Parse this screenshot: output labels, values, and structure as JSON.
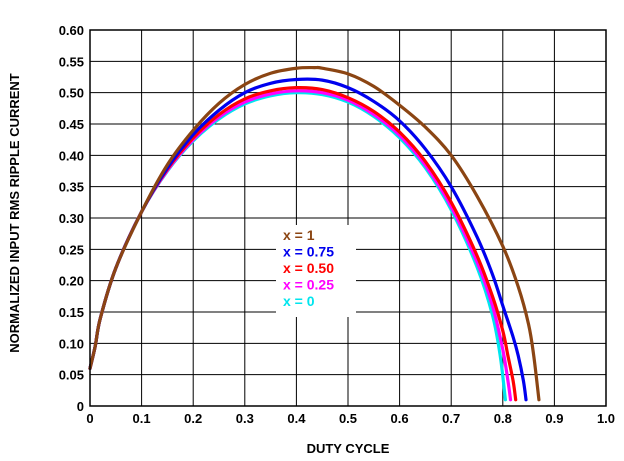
{
  "chart_data": {
    "type": "line",
    "title": "",
    "xlabel": "DUTY CYCLE",
    "ylabel": "NORMALIZED INPUT RMS RIPPLE CURRENT",
    "xlim": [
      0,
      1.0
    ],
    "ylim": [
      0,
      0.6
    ],
    "grid": true,
    "legend_position": "center",
    "x_ticks": [
      "0",
      "0.1",
      "0.2",
      "0.3",
      "0.4",
      "0.5",
      "0.6",
      "0.7",
      "0.8",
      "0.9",
      "1.0"
    ],
    "y_ticks": [
      "0",
      "0.05",
      "0.10",
      "0.15",
      "0.20",
      "0.25",
      "0.30",
      "0.35",
      "0.40",
      "0.45",
      "0.50",
      "0.55",
      "0.60"
    ],
    "series": [
      {
        "name": "x = 1",
        "color": "#8B4513",
        "x": [
          0.0,
          0.01,
          0.02,
          0.05,
          0.1,
          0.15,
          0.2,
          0.25,
          0.3,
          0.35,
          0.4,
          0.435,
          0.45,
          0.5,
          0.55,
          0.6,
          0.65,
          0.7,
          0.75,
          0.8,
          0.83,
          0.85,
          0.86,
          0.87
        ],
        "y": [
          0.06,
          0.095,
          0.14,
          0.22,
          0.31,
          0.385,
          0.44,
          0.483,
          0.513,
          0.531,
          0.539,
          0.54,
          0.539,
          0.53,
          0.51,
          0.48,
          0.445,
          0.4,
          0.335,
          0.255,
          0.19,
          0.13,
          0.08,
          0.01
        ]
      },
      {
        "name": "x = 0.75",
        "color": "#0000EE",
        "x": [
          0.0,
          0.01,
          0.02,
          0.05,
          0.1,
          0.15,
          0.2,
          0.25,
          0.3,
          0.35,
          0.4,
          0.45,
          0.5,
          0.55,
          0.6,
          0.65,
          0.7,
          0.75,
          0.78,
          0.8,
          0.82,
          0.83,
          0.84,
          0.845
        ],
        "y": [
          0.06,
          0.095,
          0.14,
          0.22,
          0.31,
          0.38,
          0.433,
          0.472,
          0.5,
          0.515,
          0.521,
          0.52,
          0.508,
          0.486,
          0.455,
          0.41,
          0.35,
          0.27,
          0.21,
          0.16,
          0.11,
          0.08,
          0.04,
          0.01
        ]
      },
      {
        "name": "x = 0.50",
        "color": "#FF0000",
        "x": [
          0.0,
          0.01,
          0.02,
          0.05,
          0.1,
          0.15,
          0.2,
          0.25,
          0.3,
          0.35,
          0.4,
          0.45,
          0.5,
          0.55,
          0.6,
          0.65,
          0.7,
          0.75,
          0.78,
          0.8,
          0.81,
          0.82,
          0.825
        ],
        "y": [
          0.06,
          0.095,
          0.14,
          0.22,
          0.31,
          0.378,
          0.428,
          0.465,
          0.49,
          0.503,
          0.508,
          0.505,
          0.492,
          0.47,
          0.437,
          0.39,
          0.325,
          0.24,
          0.175,
          0.12,
          0.08,
          0.04,
          0.01
        ]
      },
      {
        "name": "x = 0.25",
        "color": "#FF00FF",
        "x": [
          0.0,
          0.01,
          0.02,
          0.05,
          0.1,
          0.15,
          0.2,
          0.25,
          0.3,
          0.35,
          0.4,
          0.45,
          0.5,
          0.55,
          0.6,
          0.65,
          0.7,
          0.75,
          0.78,
          0.8,
          0.81,
          0.815
        ],
        "y": [
          0.06,
          0.095,
          0.14,
          0.22,
          0.31,
          0.376,
          0.425,
          0.461,
          0.485,
          0.498,
          0.503,
          0.5,
          0.488,
          0.465,
          0.432,
          0.384,
          0.318,
          0.23,
          0.16,
          0.09,
          0.04,
          0.01
        ]
      },
      {
        "name": "x = 0",
        "color": "#00E5EE",
        "x": [
          0.0,
          0.01,
          0.02,
          0.05,
          0.1,
          0.15,
          0.2,
          0.25,
          0.3,
          0.35,
          0.4,
          0.45,
          0.5,
          0.55,
          0.6,
          0.65,
          0.7,
          0.75,
          0.78,
          0.795,
          0.805
        ],
        "y": [
          0.06,
          0.095,
          0.14,
          0.22,
          0.31,
          0.375,
          0.423,
          0.458,
          0.482,
          0.495,
          0.5,
          0.497,
          0.485,
          0.462,
          0.428,
          0.38,
          0.313,
          0.222,
          0.145,
          0.08,
          0.01
        ]
      }
    ]
  }
}
